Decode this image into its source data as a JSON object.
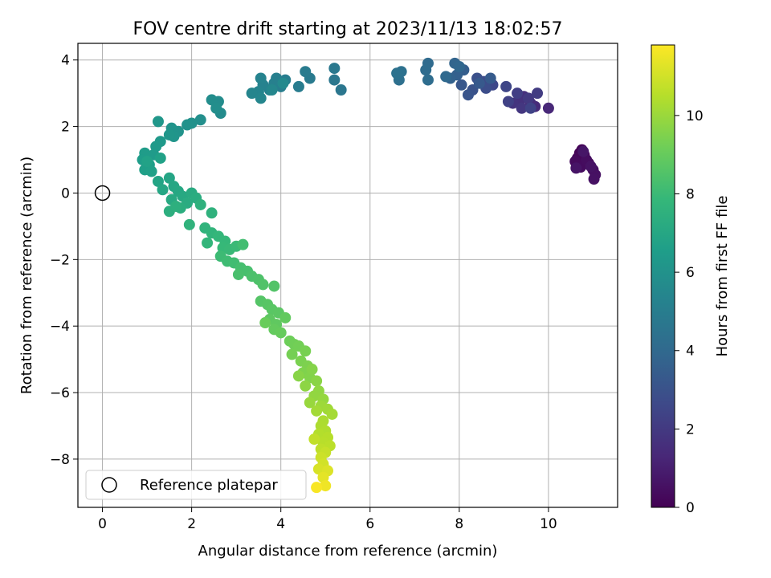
{
  "chart_data": {
    "type": "scatter",
    "title": "FOV centre drift starting at 2023/11/13 18:02:57",
    "xlabel": "Angular distance from reference (arcmin)",
    "ylabel": "Rotation from reference (arcmin)",
    "xlim": [
      -0.55,
      11.55
    ],
    "ylim": [
      -9.45,
      4.5
    ],
    "xticks": [
      0,
      2,
      4,
      6,
      8,
      10
    ],
    "yticks": [
      -8,
      -6,
      -4,
      -2,
      0,
      2,
      4
    ],
    "grid": true,
    "legend": {
      "placement": "lower-left",
      "entries": [
        "Reference platepar"
      ]
    },
    "reference_point": {
      "x": 0,
      "y": 0,
      "label": "Reference platepar"
    },
    "colorbar": {
      "label": "Hours from first FF file",
      "range": [
        0,
        11.8
      ],
      "ticks": [
        0,
        2,
        4,
        6,
        8,
        10
      ],
      "colormap": "viridis"
    },
    "colors": {
      "axis": "#000000",
      "grid": "#b0b0b0",
      "viridis": [
        "#440154",
        "#482878",
        "#3e4989",
        "#31688e",
        "#26828e",
        "#1f9e89",
        "#35b779",
        "#6ece58",
        "#b5de2b",
        "#fde725"
      ]
    },
    "series": [
      {
        "points": [
          [
            10.7,
            1.2,
            0.05
          ],
          [
            10.75,
            1.3,
            0.1
          ],
          [
            10.8,
            1.15,
            0.15
          ],
          [
            10.65,
            1.05,
            0.2
          ],
          [
            10.9,
            0.9,
            0.25
          ],
          [
            10.6,
            0.95,
            0.3
          ],
          [
            10.72,
            0.78,
            0.35
          ],
          [
            10.85,
            1.0,
            0.4
          ],
          [
            11.0,
            0.7,
            0.45
          ],
          [
            11.05,
            0.55,
            0.5
          ],
          [
            11.02,
            0.42,
            0.55
          ],
          [
            10.95,
            0.8,
            0.6
          ],
          [
            10.62,
            0.75,
            0.65
          ],
          [
            10.78,
            1.25,
            0.7
          ],
          [
            10.0,
            2.55,
            1.3
          ],
          [
            9.7,
            2.6,
            1.4
          ],
          [
            9.6,
            2.7,
            1.5
          ],
          [
            9.45,
            2.9,
            1.6
          ],
          [
            9.35,
            2.75,
            1.7
          ],
          [
            9.2,
            2.7,
            1.8
          ],
          [
            9.4,
            2.55,
            1.9
          ],
          [
            9.55,
            2.85,
            2.0
          ],
          [
            9.75,
            3.0,
            2.1
          ],
          [
            9.3,
            3.0,
            2.2
          ],
          [
            9.1,
            2.75,
            2.3
          ],
          [
            9.6,
            2.55,
            2.4
          ],
          [
            9.05,
            3.2,
            2.5
          ],
          [
            8.75,
            3.25,
            2.6
          ],
          [
            8.55,
            3.35,
            2.7
          ],
          [
            8.6,
            3.15,
            2.8
          ],
          [
            8.4,
            3.45,
            2.9
          ],
          [
            8.3,
            3.1,
            3.0
          ],
          [
            8.2,
            2.95,
            3.1
          ],
          [
            8.05,
            3.25,
            3.2
          ],
          [
            8.45,
            3.3,
            3.3
          ],
          [
            8.7,
            3.45,
            3.4
          ],
          [
            8.1,
            3.7,
            3.5
          ],
          [
            7.95,
            3.55,
            3.6
          ],
          [
            7.8,
            3.45,
            3.7
          ],
          [
            7.9,
            3.9,
            3.8
          ],
          [
            8.0,
            3.8,
            3.9
          ],
          [
            7.7,
            3.5,
            4.0
          ],
          [
            7.3,
            3.9,
            4.1
          ],
          [
            7.25,
            3.7,
            4.15
          ],
          [
            7.3,
            3.4,
            4.2
          ],
          [
            6.65,
            3.4,
            4.35
          ],
          [
            6.7,
            3.65,
            4.4
          ],
          [
            6.6,
            3.6,
            4.45
          ],
          [
            5.35,
            3.1,
            4.65
          ],
          [
            5.2,
            3.4,
            4.7
          ],
          [
            5.2,
            3.75,
            4.75
          ],
          [
            4.65,
            3.45,
            4.85
          ],
          [
            4.55,
            3.65,
            4.9
          ],
          [
            4.4,
            3.2,
            4.95
          ],
          [
            4.1,
            3.4,
            5.0
          ],
          [
            4.0,
            3.2,
            5.05
          ],
          [
            3.9,
            3.45,
            5.1
          ],
          [
            3.85,
            3.3,
            5.15
          ],
          [
            3.75,
            3.1,
            5.2
          ],
          [
            3.6,
            3.25,
            5.25
          ],
          [
            3.55,
            3.45,
            5.3
          ],
          [
            3.5,
            3.05,
            5.35
          ],
          [
            3.35,
            3.0,
            5.4
          ],
          [
            3.55,
            2.85,
            5.45
          ],
          [
            3.8,
            3.1,
            5.5
          ],
          [
            4.05,
            3.3,
            5.55
          ],
          [
            2.65,
            2.4,
            5.65
          ],
          [
            2.6,
            2.75,
            5.7
          ],
          [
            2.45,
            2.8,
            5.75
          ],
          [
            2.55,
            2.55,
            5.8
          ],
          [
            2.2,
            2.2,
            5.85
          ],
          [
            2.0,
            2.1,
            5.95
          ],
          [
            1.9,
            2.05,
            6.0
          ],
          [
            1.7,
            1.85,
            6.05
          ],
          [
            1.55,
            1.95,
            6.1
          ],
          [
            1.6,
            1.7,
            6.15
          ],
          [
            1.5,
            1.75,
            6.2
          ],
          [
            1.25,
            2.15,
            6.25
          ],
          [
            1.3,
            1.55,
            6.3
          ],
          [
            1.2,
            1.4,
            6.35
          ],
          [
            1.15,
            1.15,
            6.4
          ],
          [
            0.95,
            1.2,
            6.45
          ],
          [
            0.9,
            1.0,
            6.5
          ],
          [
            1.05,
            0.85,
            6.55
          ],
          [
            0.95,
            0.7,
            6.6
          ],
          [
            1.1,
            0.65,
            6.65
          ],
          [
            1.3,
            1.05,
            6.7
          ],
          [
            1.0,
            0.95,
            6.75
          ],
          [
            1.25,
            0.35,
            6.85
          ],
          [
            1.5,
            0.45,
            6.9
          ],
          [
            1.35,
            0.1,
            6.95
          ],
          [
            1.6,
            0.2,
            7.0
          ],
          [
            1.7,
            0.05,
            7.05
          ],
          [
            1.8,
            -0.1,
            7.1
          ],
          [
            1.55,
            -0.2,
            7.15
          ],
          [
            2.0,
            0.0,
            7.2
          ],
          [
            1.9,
            -0.3,
            7.25
          ],
          [
            2.1,
            -0.15,
            7.3
          ],
          [
            1.75,
            -0.45,
            7.35
          ],
          [
            1.5,
            -0.55,
            7.4
          ],
          [
            1.65,
            -0.4,
            7.45
          ],
          [
            2.2,
            -0.35,
            7.5
          ],
          [
            2.45,
            -0.6,
            7.55
          ],
          [
            1.95,
            -0.95,
            7.6
          ],
          [
            2.3,
            -1.05,
            7.65
          ],
          [
            2.45,
            -1.2,
            7.7
          ],
          [
            2.35,
            -1.5,
            7.75
          ],
          [
            2.6,
            -1.3,
            7.8
          ],
          [
            2.75,
            -1.45,
            7.85
          ],
          [
            2.7,
            -1.65,
            7.9
          ],
          [
            2.85,
            -1.7,
            7.95
          ],
          [
            3.0,
            -1.6,
            8.0
          ],
          [
            2.65,
            -1.9,
            8.05
          ],
          [
            2.8,
            -2.05,
            8.1
          ],
          [
            2.95,
            -2.1,
            8.15
          ],
          [
            3.15,
            -1.55,
            8.2
          ],
          [
            3.1,
            -2.25,
            8.25
          ],
          [
            3.25,
            -2.35,
            8.3
          ],
          [
            3.05,
            -2.45,
            8.35
          ],
          [
            3.35,
            -2.5,
            8.4
          ],
          [
            3.5,
            -2.6,
            8.45
          ],
          [
            3.6,
            -2.75,
            8.5
          ],
          [
            3.85,
            -2.8,
            8.55
          ],
          [
            3.55,
            -3.25,
            8.6
          ],
          [
            3.7,
            -3.35,
            8.65
          ],
          [
            3.8,
            -3.5,
            8.7
          ],
          [
            3.95,
            -3.6,
            8.75
          ],
          [
            3.75,
            -3.8,
            8.8
          ],
          [
            3.9,
            -3.95,
            8.85
          ],
          [
            4.1,
            -3.75,
            8.9
          ],
          [
            3.85,
            -4.1,
            8.95
          ],
          [
            4.0,
            -4.2,
            9.0
          ],
          [
            3.65,
            -3.9,
            9.05
          ],
          [
            4.2,
            -4.45,
            9.15
          ],
          [
            4.3,
            -4.55,
            9.2
          ],
          [
            4.4,
            -4.6,
            9.25
          ],
          [
            4.25,
            -4.85,
            9.3
          ],
          [
            4.55,
            -4.75,
            9.35
          ],
          [
            4.45,
            -5.05,
            9.4
          ],
          [
            4.6,
            -5.2,
            9.45
          ],
          [
            4.5,
            -5.4,
            9.5
          ],
          [
            4.65,
            -5.55,
            9.55
          ],
          [
            4.7,
            -5.3,
            9.6
          ],
          [
            4.4,
            -5.5,
            9.65
          ],
          [
            4.8,
            -5.65,
            9.7
          ],
          [
            4.55,
            -5.8,
            9.75
          ],
          [
            4.85,
            -5.95,
            9.8
          ],
          [
            4.75,
            -6.1,
            9.85
          ],
          [
            4.95,
            -6.2,
            9.9
          ],
          [
            4.65,
            -6.3,
            9.95
          ],
          [
            4.9,
            -6.4,
            10.05
          ],
          [
            5.05,
            -6.5,
            10.1
          ],
          [
            4.8,
            -6.55,
            10.15
          ],
          [
            5.15,
            -6.65,
            10.2
          ],
          [
            4.95,
            -6.85,
            10.3
          ],
          [
            4.9,
            -7.0,
            10.35
          ],
          [
            5.0,
            -7.15,
            10.4
          ],
          [
            4.85,
            -7.25,
            10.45
          ],
          [
            5.05,
            -7.35,
            10.5
          ],
          [
            4.95,
            -7.5,
            10.55
          ],
          [
            5.1,
            -7.6,
            10.6
          ],
          [
            4.9,
            -7.7,
            10.65
          ],
          [
            4.75,
            -7.4,
            10.7
          ],
          [
            5.0,
            -7.8,
            10.8
          ],
          [
            4.9,
            -7.95,
            10.9
          ],
          [
            4.95,
            -8.15,
            11.0
          ],
          [
            4.85,
            -8.3,
            11.1
          ],
          [
            5.05,
            -8.35,
            11.2
          ],
          [
            4.95,
            -8.55,
            11.35
          ],
          [
            5.0,
            -8.8,
            11.55
          ],
          [
            4.8,
            -8.85,
            11.7
          ]
        ]
      }
    ]
  }
}
